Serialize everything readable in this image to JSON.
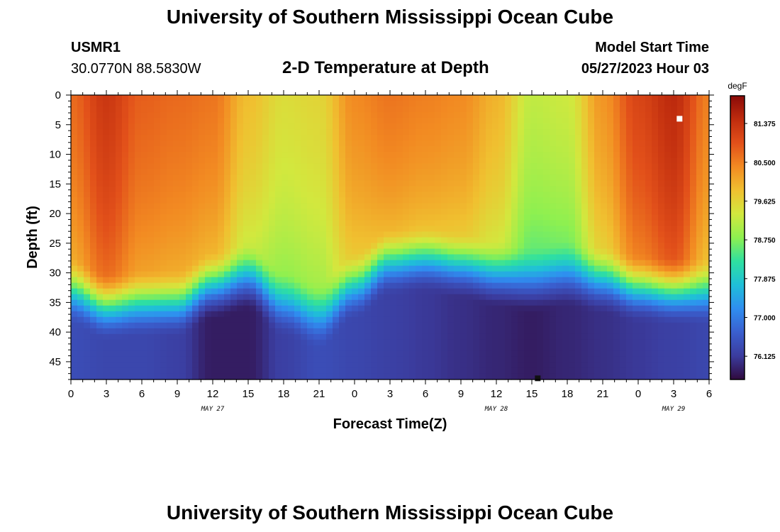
{
  "header": {
    "title": "University of Southern Mississippi Ocean Cube",
    "station_id": "USMR1",
    "station_coords": "30.0770N  88.5830W",
    "plot_title": "2-D Temperature at Depth",
    "model_start_label": "Model Start Time",
    "model_start_value": "05/27/2023 Hour 03"
  },
  "footer": {
    "title": "University of Southern Mississippi Ocean Cube"
  },
  "chart_data": {
    "type": "heatmap",
    "title": "2-D Temperature at Depth",
    "xlabel": "Forecast Time(Z)",
    "ylabel": "Depth (ft)",
    "x_hours_range": [
      0,
      54
    ],
    "x_ticks": [
      "0",
      "3",
      "6",
      "9",
      "12",
      "15",
      "18",
      "21",
      "0",
      "3",
      "6",
      "9",
      "12",
      "15",
      "18",
      "21",
      "0",
      "3",
      "6"
    ],
    "date_labels": [
      {
        "label": "MAY 27",
        "hour": 12
      },
      {
        "label": "MAY 28",
        "hour": 36
      },
      {
        "label": "MAY 29",
        "hour": 51
      }
    ],
    "y_range": [
      0,
      48
    ],
    "y_ticks": [
      "0",
      "5",
      "10",
      "15",
      "20",
      "25",
      "30",
      "35",
      "40",
      "45"
    ],
    "colorbar": {
      "unit": "degF",
      "range": [
        75.6,
        82.0
      ],
      "ticks": [
        "81.375",
        "80.500",
        "79.625",
        "78.750",
        "77.875",
        "77.000",
        "76.125"
      ],
      "palette": [
        "#300a3e",
        "#3b3c9e",
        "#3a5fcf",
        "#2f8ef0",
        "#1fbfd8",
        "#2fe0a0",
        "#8ef050",
        "#d2e83e",
        "#f0c030",
        "#f28a22",
        "#e2501a",
        "#bf2c0e",
        "#8a0a08"
      ]
    },
    "profile_series": {
      "hour": [
        0,
        3,
        6,
        9,
        12,
        15,
        18,
        21,
        24,
        27,
        30,
        33,
        36,
        39,
        42,
        45,
        48,
        51,
        54
      ],
      "surface_temp_F": [
        80.7,
        81.3,
        80.8,
        80.7,
        80.6,
        79.9,
        79.5,
        79.6,
        80.4,
        80.6,
        80.5,
        80.4,
        80.0,
        79.2,
        79.3,
        80.3,
        81.1,
        81.5,
        80.5
      ],
      "mixed_layer_depth_ft": [
        34,
        36.5,
        36,
        36,
        33,
        31.5,
        36,
        38,
        33,
        29,
        28.5,
        29.5,
        31,
        32,
        31,
        32,
        33.5,
        34,
        34
      ],
      "bottom_temp_F": [
        76.4,
        76.3,
        76.3,
        76.2,
        75.8,
        75.8,
        76.2,
        76.4,
        76.3,
        76.2,
        76.1,
        76.0,
        75.9,
        75.8,
        75.9,
        76.0,
        76.1,
        76.2,
        76.3
      ]
    },
    "markers": [
      {
        "name": "max-temp-marker",
        "hour": 51.5,
        "depth_ft": 4
      },
      {
        "name": "min-temp-marker",
        "hour": 39.5,
        "depth_ft": 47.8
      }
    ],
    "grid": false,
    "legend": "right"
  }
}
